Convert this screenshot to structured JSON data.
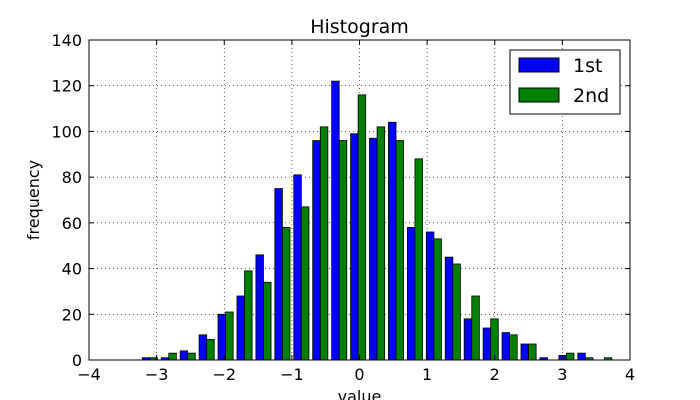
{
  "chart_data": {
    "type": "bar",
    "title": "Histogram",
    "xlabel": "value",
    "ylabel": "frequency",
    "xlim": [
      -4,
      4
    ],
    "ylim": [
      0,
      140
    ],
    "xticks": [
      -4,
      -3,
      -2,
      -1,
      0,
      1,
      2,
      3,
      4
    ],
    "xtick_labels": [
      "−4",
      "−3",
      "−2",
      "−1",
      "0",
      "1",
      "2",
      "3",
      "4"
    ],
    "yticks": [
      0,
      20,
      40,
      60,
      80,
      100,
      120,
      140
    ],
    "ytick_labels": [
      "0",
      "20",
      "40",
      "60",
      "80",
      "100",
      "120",
      "140"
    ],
    "grid": true,
    "legend": "top-right",
    "bin_edges": [
      -3.24,
      -2.96,
      -2.68,
      -2.4,
      -2.12,
      -1.84,
      -1.56,
      -1.28,
      -1.0,
      -0.72,
      -0.44,
      -0.16,
      0.12,
      0.4,
      0.68,
      0.96,
      1.24,
      1.52,
      1.8,
      2.08,
      2.36,
      2.64,
      2.92,
      3.2,
      3.48,
      3.76
    ],
    "series": [
      {
        "name": "1st",
        "color": "#0000ff",
        "values": [
          1,
          1,
          4,
          11,
          20,
          28,
          46,
          75,
          81,
          96,
          122,
          99,
          97,
          104,
          58,
          56,
          45,
          18,
          14,
          12,
          7,
          1,
          2,
          3,
          0
        ]
      },
      {
        "name": "2nd",
        "color": "#008000",
        "values": [
          1,
          3,
          3,
          9,
          21,
          39,
          34,
          58,
          67,
          102,
          96,
          116,
          102,
          96,
          88,
          53,
          42,
          28,
          18,
          11,
          7,
          0,
          3,
          1,
          1
        ]
      }
    ]
  }
}
